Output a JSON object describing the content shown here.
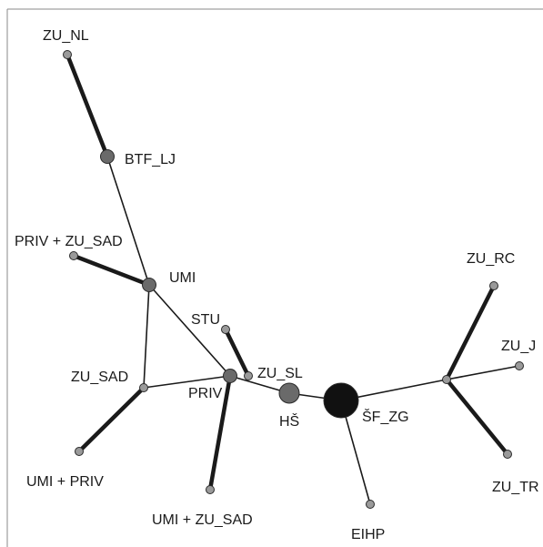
{
  "diagram": {
    "type": "network",
    "colors": {
      "edge": "#1a1a1a",
      "node_small": "#9a9a9a",
      "node_medium": "#6a6a6a",
      "node_large": "#111111",
      "node_stroke": "#2a2a2a",
      "frame": "#8a8a8a"
    },
    "nodes": [
      {
        "id": "ZU_NL",
        "label": "ZU_NL",
        "size": "small"
      },
      {
        "id": "BTF_LJ",
        "label": "BTF_LJ",
        "size": "medium"
      },
      {
        "id": "PRIV_ZU_SAD",
        "label": "PRIV + ZU_SAD",
        "size": "small"
      },
      {
        "id": "UMI",
        "label": "UMI",
        "size": "medium"
      },
      {
        "id": "STU",
        "label": "STU",
        "size": "small"
      },
      {
        "id": "ZU_SAD",
        "label": "ZU_SAD",
        "size": "small"
      },
      {
        "id": "PRIV",
        "label": "PRIV",
        "size": "medium"
      },
      {
        "id": "ZU_SL",
        "label": "ZU_SL",
        "size": "small"
      },
      {
        "id": "HS",
        "label": "HŠ",
        "size": "medium-large"
      },
      {
        "id": "SF_ZG",
        "label": "ŠF_ZG",
        "size": "large"
      },
      {
        "id": "UMI_PRIV",
        "label": "UMI + PRIV",
        "size": "small"
      },
      {
        "id": "UMI_ZU_SAD",
        "label": "UMI + ZU_SAD",
        "size": "small"
      },
      {
        "id": "EIHP",
        "label": "EIHP",
        "size": "small"
      },
      {
        "id": "HUB",
        "label": "",
        "size": "small"
      },
      {
        "id": "ZU_RC",
        "label": "ZU_RC",
        "size": "small"
      },
      {
        "id": "ZU_J",
        "label": "ZU_J",
        "size": "small"
      },
      {
        "id": "ZU_TR",
        "label": "ZU_TR",
        "size": "small"
      }
    ],
    "edges": [
      {
        "from": "ZU_NL",
        "to": "BTF_LJ",
        "weight": "thick"
      },
      {
        "from": "BTF_LJ",
        "to": "UMI",
        "weight": "thin"
      },
      {
        "from": "PRIV_ZU_SAD",
        "to": "UMI",
        "weight": "thick"
      },
      {
        "from": "UMI",
        "to": "ZU_SAD",
        "weight": "thin"
      },
      {
        "from": "UMI",
        "to": "PRIV",
        "weight": "thin"
      },
      {
        "from": "ZU_SAD",
        "to": "PRIV",
        "weight": "thin"
      },
      {
        "from": "ZU_SAD",
        "to": "UMI_PRIV",
        "weight": "thick"
      },
      {
        "from": "PRIV",
        "to": "UMI_ZU_SAD",
        "weight": "thick"
      },
      {
        "from": "PRIV",
        "to": "HS",
        "weight": "thin"
      },
      {
        "from": "STU",
        "to": "ZU_SL",
        "weight": "thick"
      },
      {
        "from": "HS",
        "to": "SF_ZG",
        "weight": "thin"
      },
      {
        "from": "SF_ZG",
        "to": "EIHP",
        "weight": "thin"
      },
      {
        "from": "SF_ZG",
        "to": "HUB",
        "weight": "thin"
      },
      {
        "from": "HUB",
        "to": "ZU_RC",
        "weight": "thick"
      },
      {
        "from": "HUB",
        "to": "ZU_J",
        "weight": "thin"
      },
      {
        "from": "HUB",
        "to": "ZU_TR",
        "weight": "thick"
      }
    ]
  }
}
